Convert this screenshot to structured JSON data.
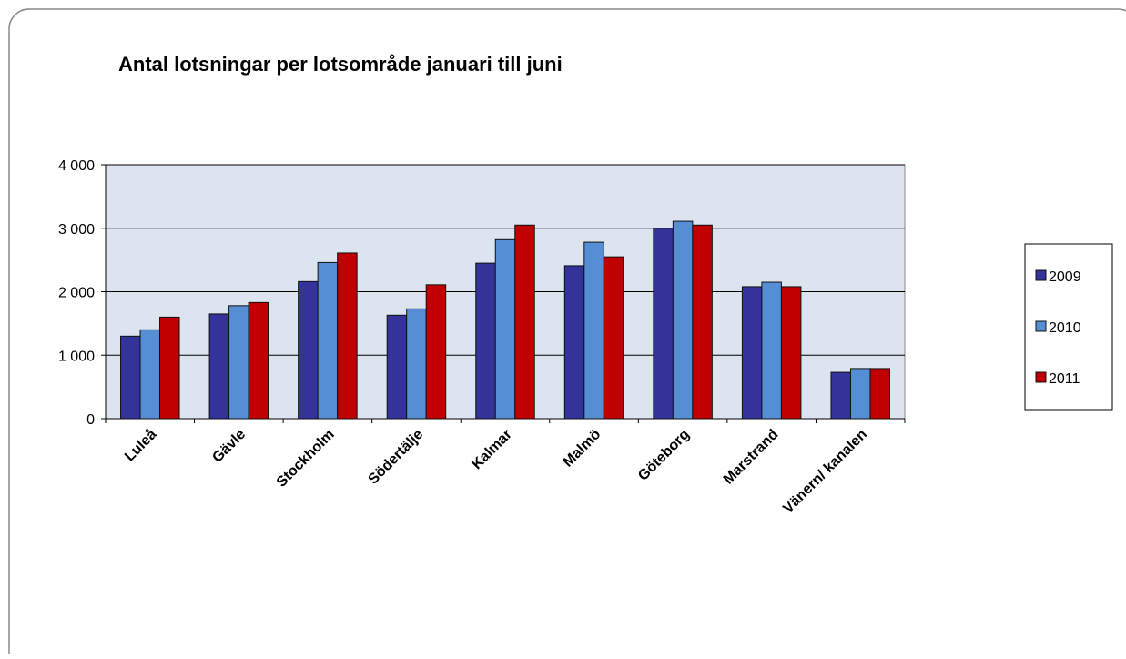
{
  "chart_data": {
    "type": "bar",
    "title": "Antal lotsningar per lotsområde januari till juni",
    "categories": [
      "Luleå",
      "Gävle",
      "Stockholm",
      "Södertälje",
      "Kalmar",
      "Malmö",
      "Göteborg",
      "Marstrand",
      "Vänern/ kanalen"
    ],
    "series": [
      {
        "name": "2009",
        "color": "#333399",
        "values": [
          1300,
          1650,
          2160,
          1630,
          2450,
          2410,
          3000,
          2080,
          730
        ]
      },
      {
        "name": "2010",
        "color": "#558ed5",
        "values": [
          1400,
          1780,
          2460,
          1730,
          2820,
          2780,
          3110,
          2150,
          790
        ]
      },
      {
        "name": "2011",
        "color": "#c00000",
        "values": [
          1600,
          1830,
          2610,
          2110,
          3050,
          2550,
          3050,
          2080,
          790
        ]
      }
    ],
    "ylim": [
      0,
      4000
    ],
    "yticks": [
      {
        "value": 0,
        "label": "0"
      },
      {
        "value": 1000,
        "label": "1 000"
      },
      {
        "value": 2000,
        "label": "2 000"
      },
      {
        "value": 3000,
        "label": "3 000"
      },
      {
        "value": 4000,
        "label": "4 000"
      }
    ],
    "grid": true,
    "legend": "right"
  }
}
